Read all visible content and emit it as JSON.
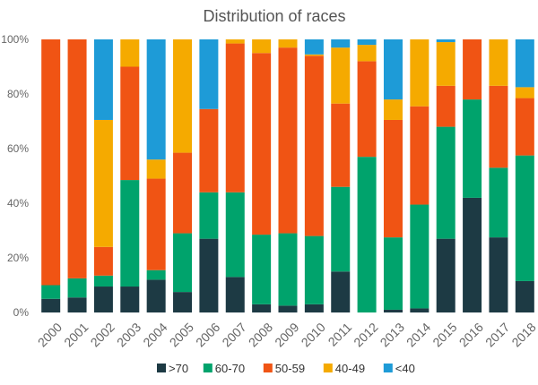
{
  "chart_data": {
    "type": "bar",
    "stacked": "percent",
    "title": "Distribution of races",
    "xlabel": "",
    "ylabel": "",
    "ylim": [
      0,
      100
    ],
    "yticks": [
      "0%",
      "20%",
      "40%",
      "60%",
      "80%",
      "100%"
    ],
    "grid": false,
    "legend_position": "bottom",
    "categories": [
      "2000",
      "2001",
      "2002",
      "2003",
      "2004",
      "2005",
      "2006",
      "2007",
      "2008",
      "2009",
      "2010",
      "2011",
      "2012",
      "2013",
      "2014",
      "2015",
      "2016",
      "2017",
      "2018"
    ],
    "series": [
      {
        "name": ">70",
        "color": "#1d3a44",
        "values": [
          5,
          5.5,
          9.5,
          9.5,
          12,
          7.5,
          27,
          13,
          3,
          2.5,
          3,
          15,
          0,
          1,
          1.5,
          27,
          42,
          27.5,
          11.5
        ]
      },
      {
        "name": "60-70",
        "color": "#00a36c",
        "values": [
          5,
          7,
          4,
          39,
          3.5,
          21.5,
          17,
          31,
          25.5,
          26.5,
          25,
          31,
          57,
          26.5,
          38,
          41,
          36,
          25.5,
          46
        ]
      },
      {
        "name": "50-59",
        "color": "#f05414",
        "values": [
          90,
          87.5,
          10.5,
          41.5,
          33.5,
          29.5,
          30.5,
          54.5,
          66.5,
          68,
          66,
          30.5,
          35,
          43,
          36,
          15,
          22,
          30,
          21
        ]
      },
      {
        "name": "40-49",
        "color": "#f5aa00",
        "values": [
          0,
          0,
          46.5,
          10,
          7,
          41.5,
          0,
          1.5,
          5,
          3,
          0.5,
          20.5,
          6,
          7.5,
          24.5,
          16,
          0,
          17,
          4
        ]
      },
      {
        "name": "<40",
        "color": "#1e9bd7",
        "values": [
          0,
          0,
          29.5,
          0,
          44,
          0,
          25.5,
          0,
          0,
          0,
          5.5,
          3,
          2,
          22,
          0,
          1,
          0,
          0,
          17.5
        ]
      }
    ]
  }
}
